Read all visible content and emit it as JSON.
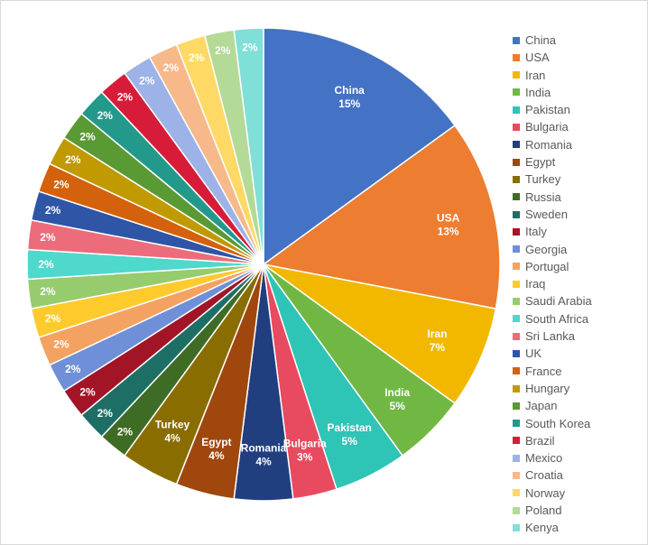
{
  "chart_data": {
    "type": "pie",
    "title": "",
    "legend_position": "right",
    "slices": [
      {
        "name": "China",
        "value": 15,
        "label": "15%",
        "color": "#4472C4"
      },
      {
        "name": "USA",
        "value": 13,
        "label": "13%",
        "color": "#ED7D31"
      },
      {
        "name": "Iran",
        "value": 7,
        "label": "7%",
        "color": "#F2B800"
      },
      {
        "name": "India",
        "value": 5,
        "label": "5%",
        "color": "#70B843"
      },
      {
        "name": "Pakistan",
        "value": 5,
        "label": "5%",
        "color": "#2EC4B6"
      },
      {
        "name": "Bulgaria",
        "value": 3,
        "label": "3%",
        "color": "#E84A5F"
      },
      {
        "name": "Romania",
        "value": 4,
        "label": "4%",
        "color": "#213F7F"
      },
      {
        "name": "Egypt",
        "value": 4,
        "label": "4%",
        "color": "#A0470E"
      },
      {
        "name": "Turkey",
        "value": 4,
        "label": "4%",
        "color": "#8A6D00"
      },
      {
        "name": "Russia",
        "value": 2,
        "label": "2%",
        "color": "#3E6C24"
      },
      {
        "name": "Sweden",
        "value": 2,
        "label": "2%",
        "color": "#1D6F66"
      },
      {
        "name": "Italy",
        "value": 2,
        "label": "2%",
        "color": "#A11527"
      },
      {
        "name": "Georgia",
        "value": 2,
        "label": "2%",
        "color": "#6F8FD8"
      },
      {
        "name": "Portugal",
        "value": 2,
        "label": "2%",
        "color": "#F4A261"
      },
      {
        "name": "Iraq",
        "value": 2,
        "label": "2%",
        "color": "#FFCA2C"
      },
      {
        "name": "Saudi Arabia",
        "value": 2,
        "label": "2%",
        "color": "#96CC6E"
      },
      {
        "name": "South Africa",
        "value": 2,
        "label": "2%",
        "color": "#4FD8CC"
      },
      {
        "name": "Sri Lanka",
        "value": 2,
        "label": "2%",
        "color": "#EC6C7C"
      },
      {
        "name": "UK",
        "value": 2,
        "label": "2%",
        "color": "#2E55A6"
      },
      {
        "name": "France",
        "value": 2,
        "label": "2%",
        "color": "#D4610B"
      },
      {
        "name": "Hungary",
        "value": 2,
        "label": "2%",
        "color": "#C09A00"
      },
      {
        "name": "Japan",
        "value": 2,
        "label": "2%",
        "color": "#5A9A34"
      },
      {
        "name": "South Korea",
        "value": 2,
        "label": "2%",
        "color": "#23998C"
      },
      {
        "name": "Brazil",
        "value": 2,
        "label": "2%",
        "color": "#D61C38"
      },
      {
        "name": "Mexico",
        "value": 2,
        "label": "2%",
        "color": "#9DB2E6"
      },
      {
        "name": "Croatia",
        "value": 2,
        "label": "2%",
        "color": "#F7B98A"
      },
      {
        "name": "Norway",
        "value": 2,
        "label": "2%",
        "color": "#FFD966"
      },
      {
        "name": "Poland",
        "value": 2,
        "label": "2%",
        "color": "#B3DA96"
      },
      {
        "name": "Kenya",
        "value": 2,
        "label": "2%",
        "color": "#7FE0D8"
      }
    ]
  }
}
